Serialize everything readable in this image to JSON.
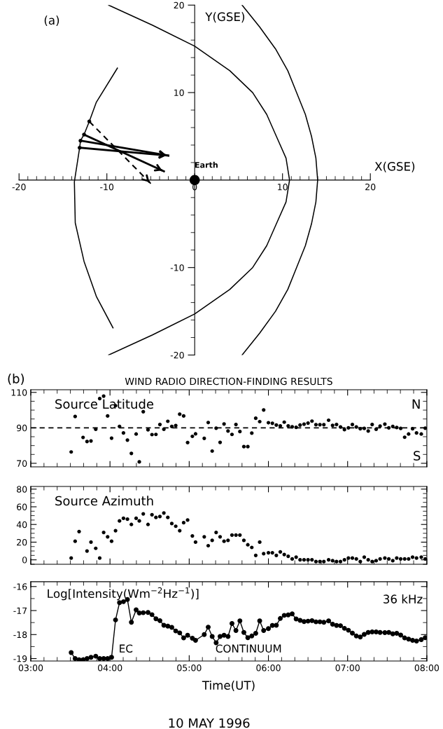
{
  "chart_data": [
    {
      "type": "line",
      "xlabel": "X(GSE)",
      "ylabel": "Y(GSE)",
      "annotations": [
        "(a)"
      ],
      "xlim": [
        -20,
        20
      ],
      "ylim": [
        -20,
        20
      ],
      "xticks": [
        -20,
        -10,
        0,
        10,
        20
      ],
      "yticks": [
        -20,
        -10,
        10,
        20
      ],
      "grid": false,
      "legend": false,
      "series": [
        {
          "type": "line",
          "color": "#000000",
          "marker": "none",
          "x": [
            -9.8,
            -4.8,
            0,
            4.0,
            6.6,
            8.2,
            9.3,
            10.4,
            10.8,
            10.4,
            9.3,
            8.2,
            6.6,
            4.0,
            0,
            -4.8,
            -9.8
          ],
          "values": [
            -20,
            -17.7,
            -15.3,
            -12.5,
            -10,
            -7.5,
            -5,
            -2.5,
            0,
            2.5,
            5,
            7.5,
            10,
            12.5,
            15.3,
            17.7,
            20
          ]
        },
        {
          "type": "line",
          "color": "#000000",
          "marker": "none",
          "x": [
            5.4,
            7.4,
            9.2,
            10.6,
            11.6,
            12.6,
            13.3,
            13.8,
            14.0,
            13.8,
            13.3,
            12.6,
            11.6,
            10.6,
            9.2,
            7.4,
            5.4
          ],
          "values": [
            -20,
            -17.5,
            -15,
            -12.5,
            -10,
            -7.5,
            -5,
            -2.5,
            0,
            2.5,
            5,
            7.5,
            10,
            12.5,
            15,
            17.5,
            20
          ]
        },
        {
          "type": "line",
          "color": "#000000",
          "marker": "none",
          "x": [
            -9.3,
            -11.2,
            -12.6,
            -13.6,
            -13.7,
            -13.1,
            -13.0,
            -12.6,
            -12.0,
            -11.2,
            -8.8
          ],
          "values": [
            -16.9,
            -13.3,
            -9.3,
            -4.9,
            -0.2,
            3.7,
            4.5,
            5.2,
            6.7,
            8.9,
            12.8
          ]
        },
        {
          "type": "scatter",
          "color": "#000000",
          "marker": "circle",
          "x": [
            -12.0,
            -12.6,
            -13.0,
            -13.1
          ],
          "values": [
            6.7,
            5.2,
            4.5,
            3.7
          ]
        },
        {
          "type": "line",
          "color": "#000000",
          "x": [
            -13.1,
            -3.0
          ],
          "values": [
            3.7,
            2.8
          ]
        },
        {
          "type": "line",
          "color": "#000000",
          "x": [
            -13.0,
            -3.0
          ],
          "values": [
            4.5,
            2.8
          ]
        },
        {
          "type": "line",
          "color": "#000000",
          "x": [
            -12.6,
            -3.5
          ],
          "values": [
            5.2,
            1.0
          ]
        },
        {
          "type": "line",
          "color": "#000000",
          "line_style": "dashed",
          "x": [
            -12.0,
            -5.0
          ],
          "values": [
            6.7,
            -0.4
          ]
        },
        {
          "type": "scatter",
          "name": "Earth",
          "color": "#000000",
          "marker": "circle",
          "x": [
            0
          ],
          "values": [
            0
          ]
        }
      ]
    },
    {
      "type": "scatter",
      "title": "WIND RADIO DIRECTION-FINDING RESULTS",
      "annotations": [
        "(b)",
        "Source Latitude",
        "N",
        "S"
      ],
      "tick_labels": "y",
      "grid": false,
      "legend": false,
      "marker": "circle",
      "xlim": [
        3,
        8
      ],
      "ylim": [
        68,
        111.5
      ],
      "yticks": [
        70,
        90,
        110
      ],
      "xticks": [
        {
          "value": 3,
          "label": null
        },
        {
          "value": 4,
          "label": null
        },
        {
          "value": 5,
          "label": null
        },
        {
          "value": 6,
          "label": null
        },
        {
          "value": 7,
          "label": null
        },
        {
          "value": 8,
          "label": null
        }
      ],
      "ref_lines": [
        {
          "axis": "y",
          "value": 90,
          "line_style": "dashed",
          "color": "#000000"
        }
      ],
      "series": [
        {
          "color": "#000000",
          "x": [
            3.51,
            3.56,
            3.66,
            3.71,
            3.76,
            3.82,
            3.87,
            3.92,
            3.97,
            4.02,
            4.07,
            4.12,
            4.17,
            4.22,
            4.27,
            4.33,
            4.37,
            4.42,
            4.48,
            4.53,
            4.58,
            4.63,
            4.68,
            4.73,
            4.78,
            4.83,
            4.88,
            4.93,
            4.98,
            5.04,
            5.08,
            5.19,
            5.24,
            5.29,
            5.34,
            5.39,
            5.44,
            5.49,
            5.54,
            5.59,
            5.64,
            5.69,
            5.74,
            5.79,
            5.84,
            5.89,
            5.94,
            6.0,
            6.05,
            6.1,
            6.15,
            6.2,
            6.25,
            6.3,
            6.35,
            6.4,
            6.45,
            6.5,
            6.55,
            6.6,
            6.65,
            6.7,
            6.76,
            6.81,
            6.86,
            6.91,
            6.96,
            7.01,
            7.06,
            7.11,
            7.16,
            7.21,
            7.26,
            7.31,
            7.36,
            7.41,
            7.47,
            7.52,
            7.57,
            7.62,
            7.67,
            7.72,
            7.77,
            7.82,
            7.87,
            7.93,
            7.98
          ],
          "values": [
            76.4,
            96.4,
            84.6,
            82.3,
            82.6,
            89.2,
            106.5,
            107.9,
            96.7,
            84.2,
            102.5,
            90.8,
            87.1,
            83.1,
            75.6,
            86.5,
            70.8,
            99.1,
            88.9,
            86.2,
            86.3,
            91.9,
            89.2,
            93.7,
            90.8,
            91.3,
            97.7,
            96.7,
            81.7,
            85.2,
            86.6,
            84.1,
            93.0,
            76.9,
            89.8,
            81.8,
            92.2,
            88.2,
            86.3,
            91.9,
            87.9,
            79.4,
            79.4,
            87.0,
            95.4,
            93.5,
            100.1,
            92.9,
            92.6,
            91.6,
            91.1,
            93.2,
            91.1,
            90.6,
            90.3,
            91.6,
            92.1,
            92.7,
            93.8,
            91.8,
            91.8,
            91.8,
            94.3,
            91.4,
            91.9,
            90.5,
            89.0,
            90.0,
            91.9,
            90.5,
            89.5,
            89.7,
            88.2,
            91.9,
            89.2,
            91.0,
            92.1,
            90.0,
            90.8,
            90.2,
            89.7,
            84.7,
            86.5,
            89.5,
            87.1,
            86.5,
            89.8
          ]
        }
      ]
    },
    {
      "type": "scatter",
      "annotations": [
        "Source Azimuth"
      ],
      "tick_labels": "y",
      "grid": false,
      "legend": false,
      "marker": "circle",
      "xlim": [
        3,
        8
      ],
      "ylim": [
        -5,
        83
      ],
      "yticks": [
        0,
        20,
        40,
        60,
        80
      ],
      "xticks": [
        {
          "value": 3,
          "label": null
        },
        {
          "value": 4,
          "label": null
        },
        {
          "value": 5,
          "label": null
        },
        {
          "value": 6,
          "label": null
        },
        {
          "value": 7,
          "label": null
        },
        {
          "value": 8,
          "label": null
        }
      ],
      "series": [
        {
          "color": "#000000",
          "x": [
            3.51,
            3.56,
            3.61,
            3.71,
            3.76,
            3.82,
            3.87,
            3.92,
            3.97,
            4.02,
            4.07,
            4.12,
            4.17,
            4.22,
            4.27,
            4.33,
            4.37,
            4.42,
            4.48,
            4.53,
            4.58,
            4.63,
            4.68,
            4.73,
            4.78,
            4.83,
            4.88,
            4.93,
            4.98,
            5.04,
            5.08,
            5.19,
            5.24,
            5.29,
            5.34,
            5.39,
            5.44,
            5.49,
            5.54,
            5.59,
            5.64,
            5.69,
            5.74,
            5.79,
            5.84,
            5.89,
            5.94,
            6.0,
            6.05,
            6.1,
            6.15,
            6.2,
            6.25,
            6.3,
            6.35,
            6.4,
            6.45,
            6.5,
            6.55,
            6.6,
            6.65,
            6.7,
            6.76,
            6.81,
            6.86,
            6.91,
            6.96,
            7.01,
            7.06,
            7.11,
            7.16,
            7.21,
            7.26,
            7.31,
            7.36,
            7.41,
            7.47,
            7.52,
            7.57,
            7.62,
            7.67,
            7.72,
            7.77,
            7.82,
            7.87,
            7.93,
            7.98
          ],
          "values": [
            2,
            21,
            32,
            10,
            20,
            13,
            2,
            31,
            26,
            21,
            33,
            44,
            47,
            46,
            40,
            47,
            44,
            52,
            40,
            51,
            48,
            49,
            53,
            48,
            41,
            38,
            33,
            42,
            45,
            27,
            20,
            26,
            16,
            22,
            31,
            26,
            21,
            22,
            28,
            28,
            28,
            22,
            17,
            14,
            5,
            20,
            7,
            8,
            8,
            5,
            9,
            6,
            4,
            1,
            3,
            0,
            0,
            0,
            0,
            -2,
            -2,
            -2,
            0,
            -1,
            -2,
            -2,
            0,
            2,
            2,
            1,
            -2,
            3,
            0,
            -2,
            -1,
            1,
            2,
            1,
            -1,
            2,
            1,
            1,
            1,
            3,
            2,
            3,
            1
          ]
        }
      ]
    },
    {
      "type": "line",
      "xlabel": "Time(UT)",
      "annotations": [
        "Log[Intensity(Wm$^{−2}$Hz$^{−1}$)]",
        "36 kHz",
        "EC",
        "CONTINUUM",
        "10 MAY 1996"
      ],
      "grid": false,
      "legend": false,
      "marker": "circle",
      "xlim": [
        3,
        8
      ],
      "ylim": [
        -19.1,
        -15.8
      ],
      "yticks": [
        -19,
        -18,
        -17,
        -16
      ],
      "xticks": [
        {
          "value": 3,
          "label": "03:00"
        },
        {
          "value": 4,
          "label": "04:00"
        },
        {
          "value": 5,
          "label": "05:00"
        },
        {
          "value": 6,
          "label": "06:00"
        },
        {
          "value": 7,
          "label": "07:00"
        },
        {
          "value": 8,
          "label": "08:00"
        }
      ],
      "series": [
        {
          "color": "#000000",
          "x": [
            3.51,
            3.56,
            3.61,
            3.66,
            3.71,
            3.76,
            3.82,
            3.87,
            3.92,
            3.97,
            4.02,
            4.07,
            4.12,
            4.17,
            4.22,
            4.27,
            4.33,
            4.37,
            4.42,
            4.48,
            4.53,
            4.58,
            4.63,
            4.68,
            4.73,
            4.78,
            4.83,
            4.88,
            4.93,
            4.98,
            5.04,
            5.08,
            5.19,
            5.24,
            5.29,
            5.34,
            5.39,
            5.44,
            5.49,
            5.54,
            5.59,
            5.64,
            5.69,
            5.74,
            5.79,
            5.84,
            5.89,
            5.94,
            6.0,
            6.05,
            6.1,
            6.15,
            6.2,
            6.25,
            6.3,
            6.35,
            6.4,
            6.45,
            6.5,
            6.55,
            6.6,
            6.65,
            6.7,
            6.76,
            6.81,
            6.86,
            6.91,
            6.96,
            7.01,
            7.06,
            7.11,
            7.16,
            7.21,
            7.26,
            7.31,
            7.36,
            7.41,
            7.47,
            7.52,
            7.57,
            7.62,
            7.67,
            7.72,
            7.77,
            7.82,
            7.87,
            7.93,
            7.98
          ],
          "values": [
            -18.75,
            -19.0,
            -19.05,
            -19.05,
            -19.0,
            -18.95,
            -18.9,
            -19.0,
            -19.0,
            -19.0,
            -18.95,
            -17.39,
            -16.67,
            -16.63,
            -16.54,
            -17.49,
            -16.97,
            -17.1,
            -17.09,
            -17.08,
            -17.17,
            -17.34,
            -17.42,
            -17.61,
            -17.65,
            -17.7,
            -17.85,
            -17.93,
            -18.14,
            -18.03,
            -18.15,
            -18.24,
            -18.0,
            -17.69,
            -18.08,
            -18.34,
            -18.08,
            -18.03,
            -18.08,
            -17.54,
            -17.83,
            -17.43,
            -17.91,
            -18.13,
            -18.06,
            -17.95,
            -17.43,
            -17.83,
            -17.75,
            -17.62,
            -17.61,
            -17.33,
            -17.2,
            -17.18,
            -17.14,
            -17.35,
            -17.41,
            -17.46,
            -17.44,
            -17.42,
            -17.47,
            -17.47,
            -17.49,
            -17.43,
            -17.57,
            -17.62,
            -17.63,
            -17.74,
            -17.82,
            -17.94,
            -18.06,
            -18.1,
            -17.99,
            -17.91,
            -17.89,
            -17.89,
            -17.91,
            -17.92,
            -17.91,
            -17.97,
            -17.95,
            -18.02,
            -18.14,
            -18.19,
            -18.24,
            -18.27,
            -18.21,
            -18.13
          ]
        }
      ]
    }
  ]
}
